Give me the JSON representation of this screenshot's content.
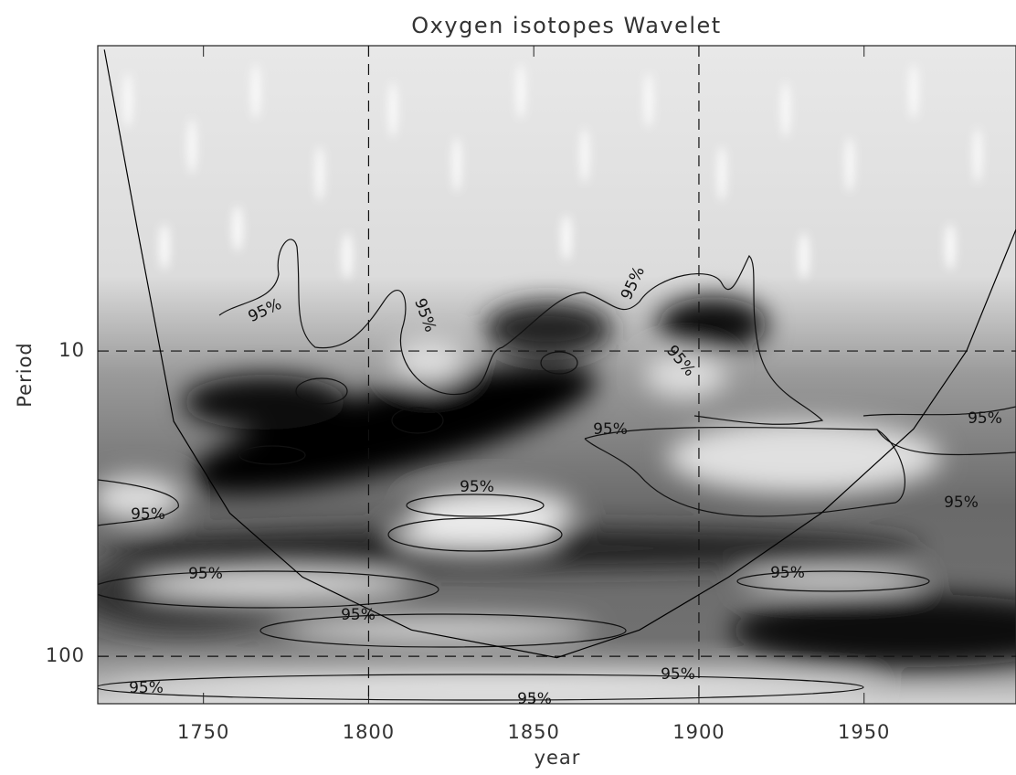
{
  "chart_data": {
    "type": "wavelet",
    "title": "Oxygen isotopes Wavelet",
    "x_label": "year",
    "y_label": "Period",
    "xlim": [
      1718,
      1996
    ],
    "xticks": [
      1750,
      1800,
      1850,
      1900,
      1950
    ],
    "ylim": [
      1,
      143
    ],
    "y_log": true,
    "y_inverted": true,
    "yticks": [
      10,
      100
    ],
    "grid": true,
    "grid_x": [
      1800,
      1900
    ],
    "grid_y": [
      10,
      100
    ],
    "series": [
      {
        "name": "cone of influence",
        "color": "#000000",
        "x": [
          1720,
          1730,
          1741,
          1758,
          1780,
          1813,
          1857,
          1882,
          1909,
          1937,
          1965,
          1981,
          1996
        ],
        "values": [
          1.03,
          4.0,
          17,
          34,
          55,
          82,
          101,
          82,
          55,
          34,
          18,
          10,
          4.0
        ]
      }
    ],
    "annotations": [
      "95%",
      "95%",
      "95%",
      "95%",
      "95%",
      "95%",
      "95%",
      "95%",
      "95%",
      "95%",
      "95%",
      "95%",
      "95%",
      "95%",
      "95%"
    ]
  }
}
